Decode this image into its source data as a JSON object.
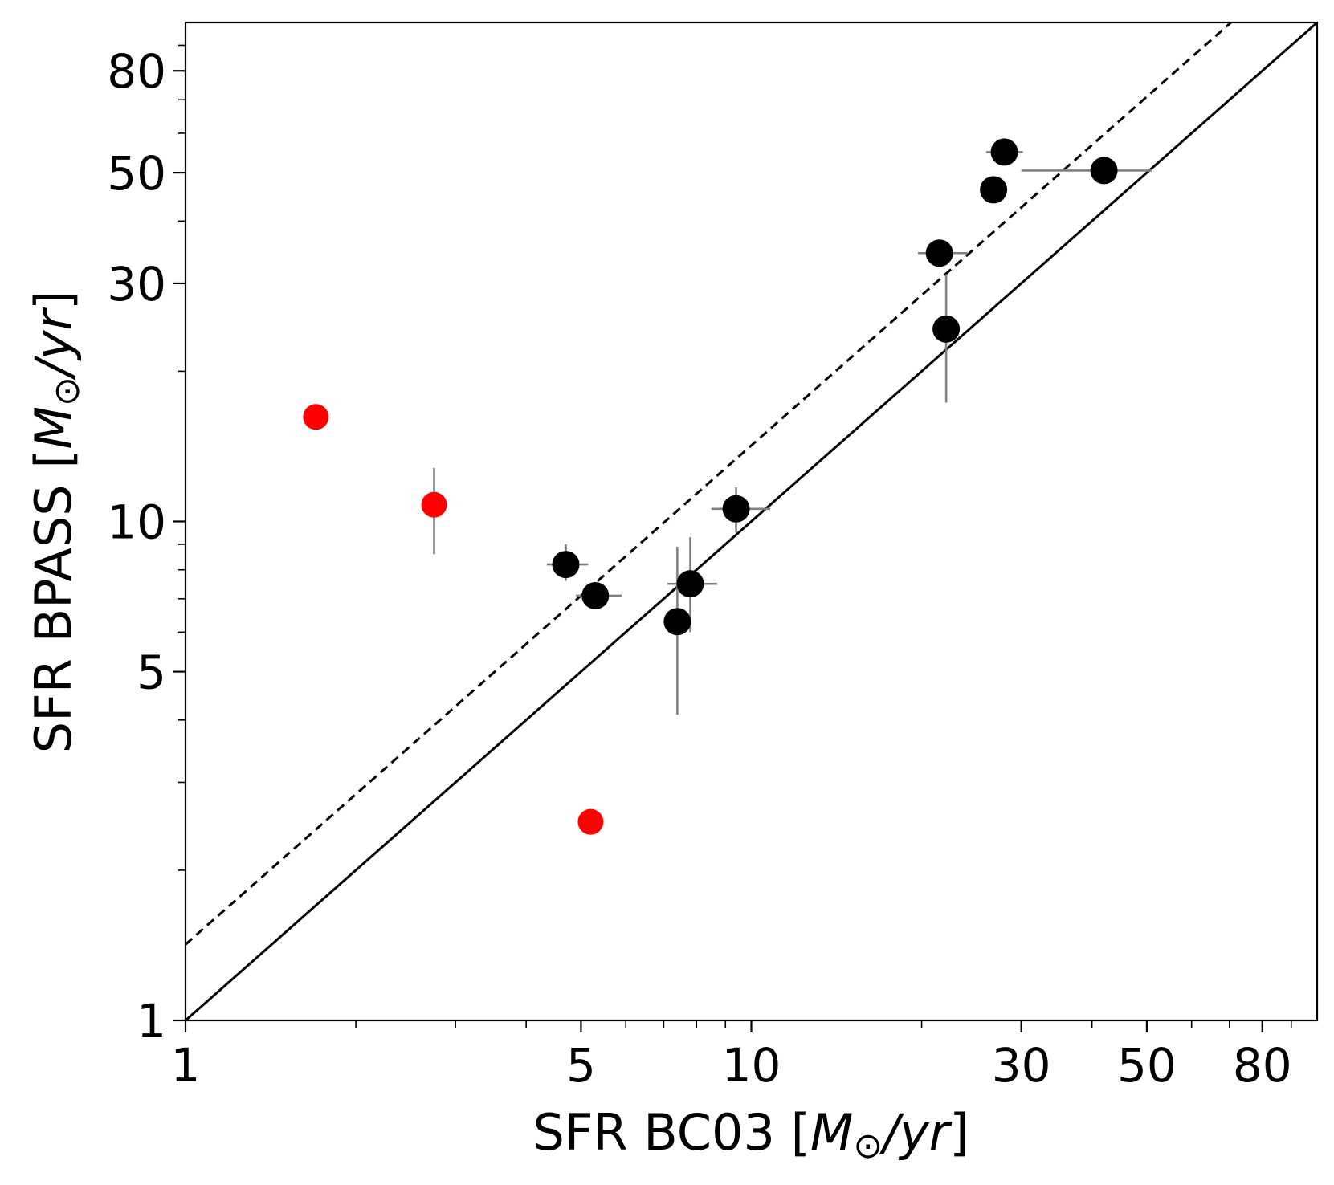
{
  "chart_data": {
    "type": "scatter",
    "xscale": "log",
    "yscale": "log",
    "xlim": [
      1,
      100
    ],
    "ylim": [
      1,
      100
    ],
    "xlabel": {
      "prefix": "SFR BC03 [",
      "math_m": "M",
      "math_sub": "⊙",
      "math_rest": "/yr",
      "suffix": "]"
    },
    "ylabel": {
      "prefix": "SFR BPASS [",
      "math_m": "M",
      "math_sub": "⊙",
      "math_rest": "/yr",
      "suffix": "]"
    },
    "xticks": [
      1,
      5,
      10,
      30,
      50,
      80
    ],
    "yticks": [
      1,
      5,
      10,
      30,
      50,
      80
    ],
    "xtick_labels": [
      "1",
      "5",
      "10",
      "30",
      "50",
      "80"
    ],
    "ytick_labels": [
      "1",
      "5",
      "10",
      "30",
      "50",
      "80"
    ],
    "lines": [
      {
        "name": "one-to-one",
        "style": "solid",
        "slope": 1.0,
        "factor": 1.0
      },
      {
        "name": "offset",
        "style": "dashed",
        "slope": 1.0,
        "factor": 1.42
      }
    ],
    "series": [
      {
        "name": "black-points",
        "color": "#000000",
        "points": [
          {
            "x": 4.7,
            "y": 8.2,
            "xerr": [
              0.35,
              0.45
            ],
            "yerr": [
              0.6,
              0.8
            ]
          },
          {
            "x": 5.3,
            "y": 7.1,
            "xerr": [
              0.4,
              0.6
            ],
            "yerr": null
          },
          {
            "x": 7.4,
            "y": 6.3,
            "xerr": [
              0.4,
              0.3
            ],
            "yerr": [
              2.2,
              2.6
            ]
          },
          {
            "x": 7.8,
            "y": 7.5,
            "xerr": [
              0.7,
              0.9
            ],
            "yerr": [
              1.5,
              1.8
            ]
          },
          {
            "x": 9.4,
            "y": 10.6,
            "xerr": [
              0.9,
              1.4
            ],
            "yerr": [
              1.1,
              1.1
            ]
          },
          {
            "x": 21.5,
            "y": 34.5,
            "xerr": [
              1.8,
              2.6
            ],
            "yerr": [
              1.6,
              1.8
            ]
          },
          {
            "x": 22.1,
            "y": 24.3,
            "xerr": null,
            "yerr": [
              7.0,
              7.0
            ]
          },
          {
            "x": 26.8,
            "y": 46.2,
            "xerr": null,
            "yerr": null
          },
          {
            "x": 28.0,
            "y": 55.0,
            "xerr": [
              2.0,
              2.2
            ],
            "yerr": null
          },
          {
            "x": 42.0,
            "y": 50.5,
            "xerr": [
              12.0,
              9.0
            ],
            "yerr": null
          }
        ]
      },
      {
        "name": "red-points",
        "color": "#ff0000",
        "points": [
          {
            "x": 1.7,
            "y": 16.2,
            "xerr": null,
            "yerr": null
          },
          {
            "x": 2.75,
            "y": 10.8,
            "xerr": null,
            "yerr": [
              2.2,
              2.0
            ]
          },
          {
            "x": 5.2,
            "y": 2.5,
            "xerr": null,
            "yerr": null
          }
        ]
      }
    ],
    "errorbar_color": "#808080"
  }
}
